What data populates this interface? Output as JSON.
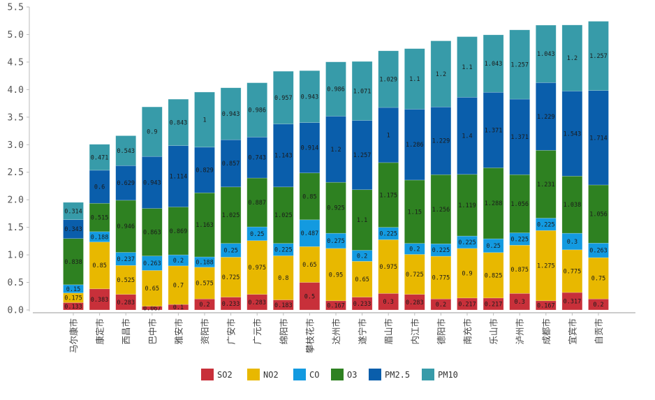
{
  "chart_data": {
    "type": "bar",
    "stacked": true,
    "title": "",
    "xlabel": "",
    "ylabel": "",
    "ylim": [
      0,
      5.5
    ],
    "yticks": [
      "0.0",
      "0.5",
      "1.0",
      "1.5",
      "2.0",
      "2.5",
      "3.0",
      "3.5",
      "4.0",
      "4.5",
      "5.0",
      "5.5"
    ],
    "grid": false,
    "legend_position": "bottom-center",
    "categories": [
      "马尔康市",
      "康定市",
      "西昌市",
      "巴中市",
      "雅安市",
      "资阳市",
      "广安市",
      "广元市",
      "绵阳市",
      "攀枝花市",
      "达州市",
      "遂宁市",
      "眉山市",
      "内江市",
      "德阳市",
      "南充市",
      "乐山市",
      "泸州市",
      "成都市",
      "宜宾市",
      "自贡市"
    ],
    "series": [
      {
        "name": "SO2",
        "color": "#c8303a",
        "values": [
          0.133,
          0.383,
          0.283,
          0.067,
          0.1,
          0.2,
          0.233,
          0.283,
          0.183,
          0.5,
          0.167,
          0.233,
          0.3,
          0.283,
          0.2,
          0.217,
          0.217,
          0.3,
          0.167,
          0.317,
          0.2
        ]
      },
      {
        "name": "NO2",
        "color": "#e8b800",
        "values": [
          0.175,
          0.85,
          0.525,
          0.65,
          0.7,
          0.575,
          0.725,
          0.975,
          0.8,
          0.65,
          0.95,
          0.65,
          0.975,
          0.725,
          0.775,
          0.9,
          0.825,
          0.875,
          1.275,
          0.775,
          0.75
        ]
      },
      {
        "name": "CO",
        "color": "#139ae0",
        "values": [
          0.15,
          0.188,
          0.237,
          0.263,
          0.2,
          0.188,
          0.25,
          0.25,
          0.225,
          0.487,
          0.275,
          0.2,
          0.225,
          0.2,
          0.225,
          0.225,
          0.25,
          0.225,
          0.225,
          0.3,
          0.263
        ]
      },
      {
        "name": "O3",
        "color": "#2e8121",
        "values": [
          0.838,
          0.515,
          0.946,
          0.863,
          0.869,
          1.163,
          1.025,
          0.887,
          1.025,
          0.85,
          0.925,
          1.1,
          1.175,
          1.15,
          1.256,
          1.119,
          1.288,
          1.056,
          1.231,
          1.038,
          1.056
        ]
      },
      {
        "name": "PM2.5",
        "color": "#0a5eab",
        "values": [
          0.343,
          0.6,
          0.629,
          0.943,
          1.114,
          0.829,
          0.857,
          0.743,
          1.143,
          0.914,
          1.2,
          1.257,
          1.0,
          1.286,
          1.229,
          1.4,
          1.371,
          1.371,
          1.229,
          1.543,
          1.714
        ]
      },
      {
        "name": "PM10",
        "color": "#379ba9",
        "values": [
          0.314,
          0.471,
          0.543,
          0.9,
          0.843,
          1.0,
          0.943,
          0.986,
          0.957,
          0.943,
          0.986,
          1.071,
          1.029,
          1.1,
          1.2,
          1.1,
          1.043,
          1.257,
          1.043,
          1.2,
          1.257
        ]
      }
    ],
    "value_labels": [
      [
        "0.133",
        "0.175",
        "0.15",
        "0.838",
        "0.343",
        "0.314"
      ],
      [
        "0.383",
        "0.85",
        "0.188",
        "0.515",
        "0.6",
        "0.471"
      ],
      [
        "0.283",
        "0.525",
        "0.237",
        "0.946",
        "0.629",
        "0.543"
      ],
      [
        "0.067",
        "0.65",
        "0.263",
        "0.863",
        "0.943",
        "0.9"
      ],
      [
        "0.1",
        "0.7",
        "0.2",
        "0.869",
        "1.114",
        "0.843"
      ],
      [
        "0.2",
        "0.575",
        "0.188",
        "1.163",
        "0.829",
        "1"
      ],
      [
        "0.233",
        "0.725",
        "0.25",
        "1.025",
        "0.857",
        "0.943"
      ],
      [
        "0.283",
        "0.975",
        "0.25",
        "0.887",
        "0.743",
        "0.986"
      ],
      [
        "0.183",
        "0.8",
        "0.225",
        "1.025",
        "1.143",
        "0.957"
      ],
      [
        "0.5",
        "0.65",
        "0.487",
        "0.85",
        "0.914",
        "0.943"
      ],
      [
        "0.167",
        "0.95",
        "0.275",
        "0.925",
        "1.2",
        "0.986"
      ],
      [
        "0.233",
        "0.65",
        "0.2",
        "1.1",
        "1.257",
        "1.071"
      ],
      [
        "0.3",
        "0.975",
        "0.225",
        "1.175",
        "1",
        "1.029"
      ],
      [
        "0.283",
        "0.725",
        "0.2",
        "1.15",
        "1.286",
        "1.1"
      ],
      [
        "0.2",
        "0.775",
        "0.225",
        "1.256",
        "1.229",
        "1.2"
      ],
      [
        "0.217",
        "0.9",
        "0.225",
        "1.119",
        "1.4",
        "1.1"
      ],
      [
        "0.217",
        "0.825",
        "0.25",
        "1.288",
        "1.371",
        "1.043"
      ],
      [
        "0.3",
        "0.875",
        "0.225",
        "1.056",
        "1.371",
        "1.257"
      ],
      [
        "0.167",
        "1.275",
        "0.225",
        "1.231",
        "1.229",
        "1.043"
      ],
      [
        "0.317",
        "0.775",
        "0.3",
        "1.038",
        "1.543",
        "1.2"
      ],
      [
        "0.2",
        "0.75",
        "0.263",
        "1.056",
        "1.714",
        "1.257"
      ]
    ]
  }
}
